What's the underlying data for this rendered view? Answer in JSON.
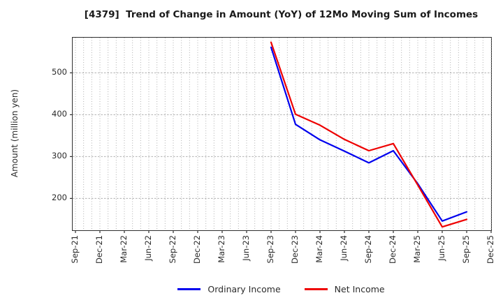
{
  "chart_data": {
    "type": "line",
    "title": "[4379]  Trend of Change in Amount (YoY) of 12Mo Moving Sum of Incomes",
    "ylabel": "Amount (million yen)",
    "xlabel": "",
    "x_categories": [
      "Sep-21",
      "Dec-21",
      "Mar-22",
      "Jun-22",
      "Sep-22",
      "Dec-22",
      "Mar-23",
      "Jun-23",
      "Sep-23",
      "Dec-23",
      "Mar-24",
      "Jun-24",
      "Sep-24",
      "Dec-24",
      "Mar-25",
      "Jun-25",
      "Sep-25",
      "Dec-25"
    ],
    "yticks": [
      200,
      300,
      400,
      500
    ],
    "ylim": [
      124,
      584
    ],
    "grid": "dotted, every month vertical, every 100 horizontal",
    "legend_position": "bottom-center",
    "series": [
      {
        "name": "Ordinary Income",
        "color": "#0000ee",
        "x": [
          "Sep-23",
          "Dec-23",
          "Mar-24",
          "Jun-24",
          "Sep-24",
          "Dec-24",
          "Mar-25",
          "Jun-25",
          "Sep-25"
        ],
        "values": [
          561,
          377,
          340,
          313,
          285,
          314,
          235,
          146,
          168
        ]
      },
      {
        "name": "Net Income",
        "color": "#ee0000",
        "x": [
          "Sep-23",
          "Dec-23",
          "Mar-24",
          "Jun-24",
          "Sep-24",
          "Dec-24",
          "Mar-25",
          "Jun-25",
          "Sep-25"
        ],
        "values": [
          573,
          401,
          375,
          341,
          314,
          331,
          232,
          132,
          150
        ]
      }
    ],
    "colors": {
      "grid": "#b0b0b0",
      "spine": "#2f2f2f",
      "tick_text": "#2b2b2b",
      "title_text": "#1a1a1a"
    }
  }
}
